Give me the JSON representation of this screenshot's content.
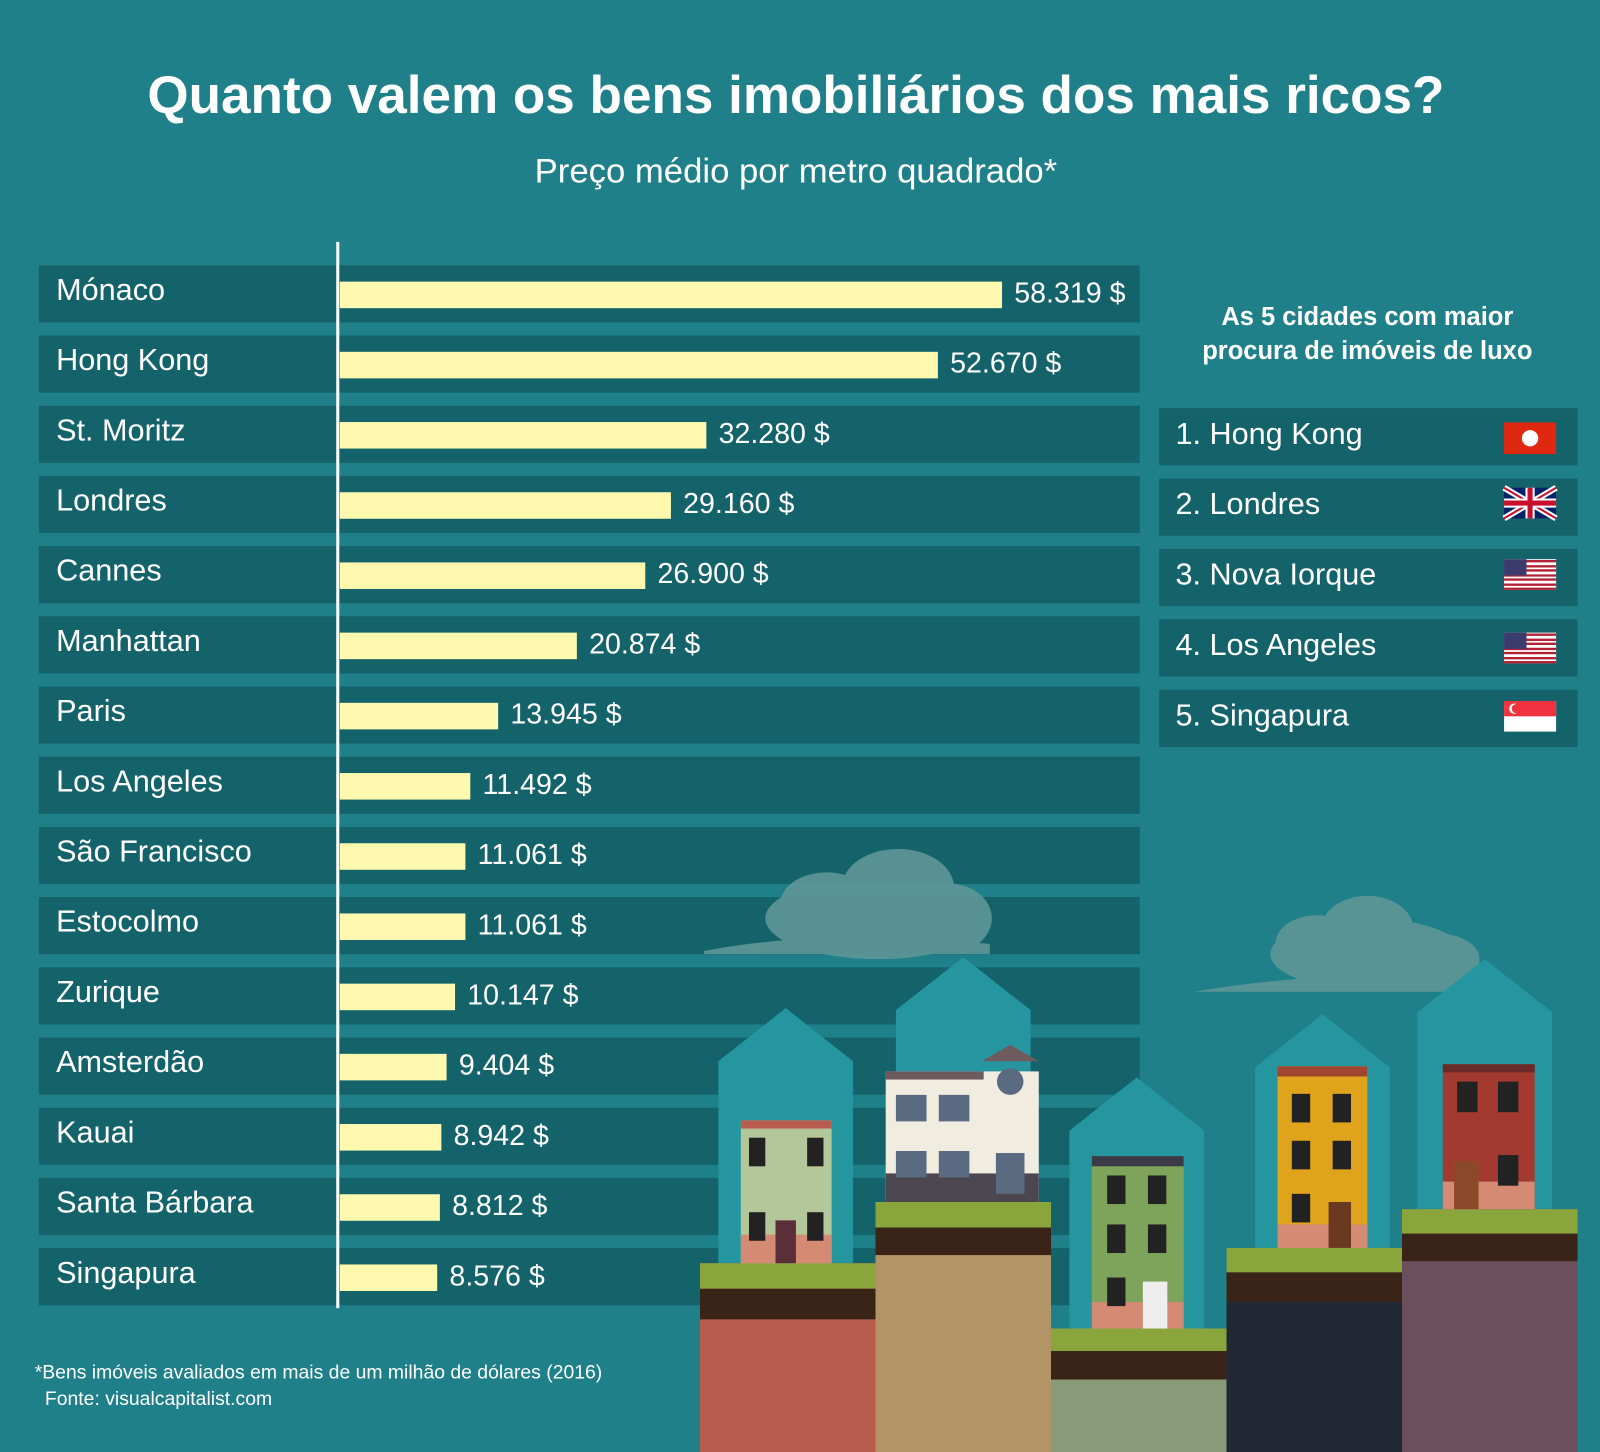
{
  "chart_data": {
    "type": "bar",
    "orientation": "horizontal",
    "title": "Quanto valem os bens imobiliários dos mais ricos?",
    "subtitle": "Preço médio por metro quadrado*",
    "categories": [
      "Mónaco",
      "Hong Kong",
      "St. Moritz",
      "Londres",
      "Cannes",
      "Manhattan",
      "Paris",
      "Los Angeles",
      "São Francisco",
      "Estocolmo",
      "Zurique",
      "Amsterdão",
      "Kauai",
      "Santa Bárbara",
      "Singapura"
    ],
    "values": [
      58319,
      52670,
      32280,
      29160,
      26900,
      20874,
      13945,
      11492,
      11061,
      11061,
      10147,
      9404,
      8942,
      8812,
      8576
    ],
    "value_labels": [
      "58.319 $",
      "52.670 $",
      "32.280 $",
      "29.160 $",
      "26.900 $",
      "20.874 $",
      "13.945 $",
      "11.492 $",
      "11.061 $",
      "11.061 $",
      "10.147 $",
      "9.404 $",
      "8.942 $",
      "8.812 $",
      "8.576 $"
    ],
    "color": "#fff9b0",
    "footnote": "*Bens imóveis avaliados em mais de um milhão de dólares (2016)",
    "source": "Fonte: visualcapitalist.com"
  },
  "side_panel": {
    "title_lines": [
      "As 5 cidades com maior",
      "procura de imóveis de luxo"
    ],
    "items": [
      "1. Hong Kong",
      "2. Londres",
      "3. Nova Iorque",
      "4. Los Angeles",
      "5. Singapura"
    ]
  }
}
